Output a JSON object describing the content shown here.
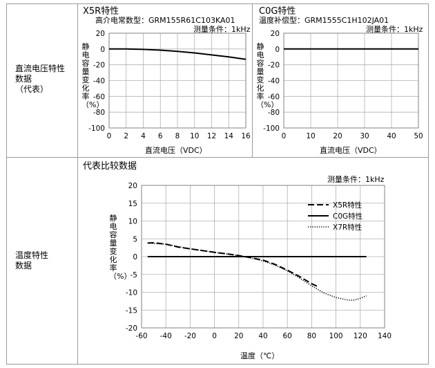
{
  "rows": {
    "dc_label": "直流电压特性\n数据\n（代表）",
    "temp_label": "温度特性\n数据"
  },
  "colors": {
    "line": "#000000",
    "grid": "#b0b0b0",
    "border": "#9a9a9a"
  },
  "chart_data": [
    {
      "type": "line",
      "title": "X5R特性",
      "subtitle": "高介电常数型：GRM155R61C103KA01",
      "condition": "测量条件：1kHz",
      "xlabel": "直流电压（VDC）",
      "ylabel": "静电容量变化率（%）",
      "xlim": [
        0,
        16
      ],
      "ylim": [
        -100,
        20
      ],
      "xticks": [
        0,
        2,
        4,
        6,
        8,
        10,
        12,
        14,
        16
      ],
      "yticks": [
        20,
        0,
        -20,
        -40,
        -60,
        -80,
        -100
      ],
      "grid": true,
      "series": [
        {
          "name": "",
          "style": "solid",
          "x": [
            0,
            2,
            4,
            6,
            8,
            10,
            12,
            14,
            16
          ],
          "y": [
            0,
            0,
            -0.5,
            -1.5,
            -3,
            -5,
            -7.5,
            -10,
            -13
          ]
        }
      ]
    },
    {
      "type": "line",
      "title": "C0G特性",
      "subtitle": "温度补偿型：GRM1555C1H102JA01",
      "condition": "测量条件：1kHz",
      "xlabel": "直流电压（VDC）",
      "ylabel": "静电容量变化率（%）",
      "xlim": [
        0,
        50
      ],
      "ylim": [
        -100,
        20
      ],
      "xticks": [
        0,
        10,
        20,
        30,
        40,
        50
      ],
      "yticks": [
        20,
        0,
        -20,
        -40,
        -60,
        -80,
        -100
      ],
      "grid": true,
      "series": [
        {
          "name": "",
          "style": "solid",
          "x": [
            0,
            50
          ],
          "y": [
            0,
            0
          ]
        }
      ]
    },
    {
      "type": "line",
      "title": "代表比较数据",
      "condition": "测量条件：1kHz",
      "xlabel": "温度（℃）",
      "ylabel": "静电容量变化率（%）",
      "xlim": [
        -60,
        140
      ],
      "ylim": [
        -20,
        20
      ],
      "xticks": [
        -60,
        -40,
        -20,
        0,
        20,
        40,
        60,
        80,
        100,
        120,
        140
      ],
      "yticks": [
        20,
        15,
        10,
        5,
        0,
        -5,
        -10,
        -15,
        -20
      ],
      "grid": true,
      "legend": "top-right",
      "series": [
        {
          "name": "X5R特性",
          "style": "dash",
          "x": [
            -55,
            -50,
            -40,
            -30,
            -20,
            -10,
            0,
            10,
            20,
            25,
            30,
            40,
            50,
            60,
            70,
            80,
            85
          ],
          "y": [
            3.8,
            3.9,
            3.5,
            2.7,
            2.2,
            1.7,
            1.2,
            0.8,
            0.3,
            0,
            -0.3,
            -1.0,
            -2.2,
            -3.8,
            -5.6,
            -7.6,
            -8.4
          ]
        },
        {
          "name": "C0G特性",
          "style": "solid",
          "x": [
            -55,
            125
          ],
          "y": [
            0,
            0
          ]
        },
        {
          "name": "X7R特性",
          "style": "dot",
          "x": [
            -55,
            -40,
            -20,
            0,
            20,
            25,
            40,
            50,
            60,
            70,
            80,
            90,
            100,
            110,
            115,
            120,
            125
          ],
          "y": [
            3.8,
            3.5,
            2.2,
            1.2,
            0.3,
            0,
            -1.2,
            -2.4,
            -4.0,
            -6.0,
            -8.2,
            -10.2,
            -11.5,
            -12.2,
            -12.2,
            -11.7,
            -11.0
          ]
        }
      ]
    }
  ]
}
